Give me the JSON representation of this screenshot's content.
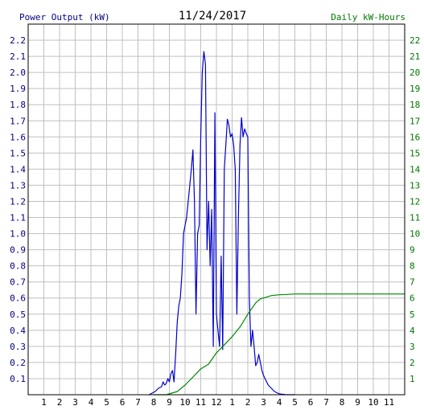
{
  "chart_data": {
    "type": "line",
    "title": "11/24/2017",
    "left_axis_title": "Power Output (kW)",
    "right_axis_title": "Daily kW-Hours",
    "x_tick_labels": [
      "1",
      "2",
      "3",
      "4",
      "5",
      "6",
      "7",
      "8",
      "9",
      "10",
      "11",
      "12",
      "1",
      "2",
      "3",
      "4",
      "5",
      "6",
      "7",
      "8",
      "9",
      "10",
      "11"
    ],
    "x_range_hours": [
      0,
      24
    ],
    "left_ylim": [
      0,
      2.3
    ],
    "left_ticks": [
      "0.1",
      "0.2",
      "0.3",
      "0.4",
      "0.5",
      "0.6",
      "0.7",
      "0.8",
      "0.9",
      "1.0",
      "1.1",
      "1.2",
      "1.3",
      "1.4",
      "1.5",
      "1.6",
      "1.7",
      "1.8",
      "1.9",
      "2.0",
      "2.1",
      "2.2"
    ],
    "right_ylim": [
      0,
      23
    ],
    "right_ticks": [
      "1",
      "2",
      "3",
      "4",
      "5",
      "6",
      "7",
      "8",
      "9",
      "10",
      "11",
      "12",
      "13",
      "14",
      "15",
      "16",
      "17",
      "18",
      "19",
      "20",
      "21",
      "22"
    ],
    "grid": true,
    "colors": {
      "power": "#0000cc",
      "energy": "#008800",
      "left_axis_text": "#000080",
      "right_axis_text": "#007700",
      "grid": "#c0c0c0"
    },
    "series": [
      {
        "axis": "left",
        "x": [
          7.7,
          7.9,
          8.1,
          8.3,
          8.5,
          8.6,
          8.7,
          8.8,
          8.9,
          9.0,
          9.1,
          9.2,
          9.3,
          9.4,
          9.5,
          9.6,
          9.7,
          9.8,
          9.9,
          10.0,
          10.1,
          10.2,
          10.3,
          10.4,
          10.5,
          10.6,
          10.7,
          10.8,
          10.9,
          11.0,
          11.1,
          11.2,
          11.3,
          11.4,
          11.5,
          11.6,
          11.7,
          11.8,
          11.9,
          12.0,
          12.1,
          12.2,
          12.3,
          12.4,
          12.5,
          12.6,
          12.7,
          12.8,
          12.9,
          13.0,
          13.1,
          13.2,
          13.3,
          13.4,
          13.5,
          13.6,
          13.7,
          13.8,
          13.9,
          14.0,
          14.1,
          14.2,
          14.3,
          14.4,
          14.5,
          14.6,
          14.7,
          14.8,
          14.9,
          15.0,
          15.1,
          15.2,
          15.3,
          15.4,
          15.5,
          15.6,
          15.7,
          15.8,
          15.9,
          16.0,
          16.1,
          16.2,
          16.3,
          16.4,
          16.5,
          16.6,
          16.8,
          17.0
        ],
        "values": [
          0.0,
          0.01,
          0.02,
          0.04,
          0.05,
          0.08,
          0.06,
          0.07,
          0.1,
          0.08,
          0.13,
          0.15,
          0.08,
          0.25,
          0.45,
          0.55,
          0.6,
          0.75,
          1.0,
          1.05,
          1.1,
          1.2,
          1.3,
          1.4,
          1.52,
          1.2,
          0.5,
          1.0,
          1.05,
          1.6,
          2.0,
          2.13,
          2.05,
          0.9,
          1.2,
          0.8,
          1.15,
          0.3,
          1.75,
          0.5,
          0.4,
          0.3,
          0.86,
          0.28,
          1.4,
          1.55,
          1.71,
          1.67,
          1.6,
          1.62,
          1.55,
          1.4,
          0.5,
          1.1,
          1.55,
          1.72,
          1.6,
          1.65,
          1.62,
          1.6,
          0.6,
          0.3,
          0.4,
          0.3,
          0.18,
          0.2,
          0.25,
          0.2,
          0.15,
          0.12,
          0.1,
          0.08,
          0.06,
          0.05,
          0.04,
          0.03,
          0.02,
          0.015,
          0.01,
          0.006,
          0.004,
          0.003,
          0.002,
          0.001,
          0.0,
          0.0,
          0.0,
          0.0
        ]
      },
      {
        "axis": "right",
        "x": [
          8.0,
          8.8,
          9.5,
          10.0,
          10.5,
          11.0,
          11.5,
          12.0,
          12.5,
          13.0,
          13.5,
          14.0,
          14.5,
          14.8,
          15.0,
          15.5,
          16.0,
          16.5,
          17.0,
          18.0,
          20.0,
          22.0,
          24.0
        ],
        "values": [
          0.0,
          0.0,
          0.2,
          0.6,
          1.1,
          1.6,
          1.9,
          2.6,
          3.1,
          3.6,
          4.2,
          5.0,
          5.7,
          5.95,
          6.0,
          6.15,
          6.2,
          6.22,
          6.25,
          6.25,
          6.25,
          6.25,
          6.25
        ]
      }
    ]
  }
}
